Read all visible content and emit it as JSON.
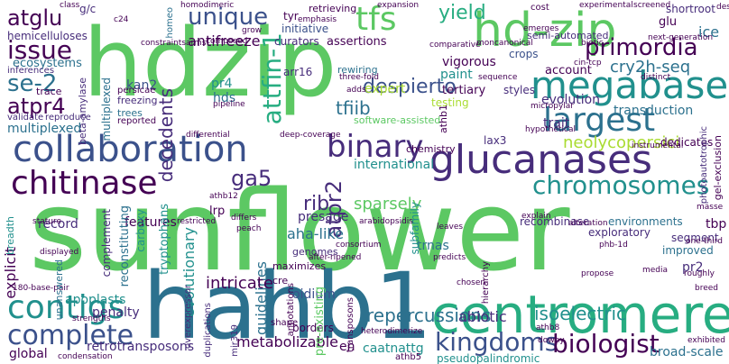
{
  "background": "#ffffff",
  "palette": {
    "darkpurple": "#440154",
    "purple": "#472d7b",
    "indigo": "#3b518b",
    "blue": "#2c718e",
    "teal": "#21908d",
    "sea": "#27ad81",
    "green": "#5cc863",
    "lime": "#aadc32",
    "yellow": "#fde725"
  },
  "words": {
    "sunflower": "sunflower",
    "hdzip": "hdzip",
    "hahb1": "hahb1",
    "centromere": "centromere",
    "hd_zip": "hd-zip",
    "glucanases": "glucanases",
    "collaboration": "collaboration",
    "megabases": "megabases",
    "chitinase": "chitinase",
    "largest": "largest",
    "binary": "binary",
    "contigs": "contigs",
    "complete": "complete",
    "kingdoms": "kingdoms",
    "biologist": "biologist",
    "chromosomes": "chromosomes",
    "primordia": "primordia",
    "tfs": "tfs",
    "unique": "unique",
    "issue": "issue",
    "atglu": "atglu",
    "se_2": "se-2",
    "atpr4": "atpr4",
    "attfin_1": "attfin-1",
    "yield": "yield",
    "despierto": "despierto",
    "tfiib": "tfiib",
    "ga5": "ga5",
    "rib": "rib",
    "atpr2": "atpr2",
    "sparsely": "sparsely",
    "repercussions": "repercussions",
    "isoelectric": "isoelectric",
    "abiotic": "abiotic",
    "cry2h_seq": "cry2h-seq",
    "neolycopersici": "neolycopersici",
    "transduction": "transduction",
    "evolution": "evolution",
    "trait": "trait",
    "account": "account",
    "ice": "ice",
    "glu": "glu",
    "shortroot": "shortroot",
    "hemicelluloses": "hemicelluloses",
    "ecosystems": "ecosystems",
    "antifreeze": "antifreeze",
    "decedents": "decedents",
    "kan2": "kan2",
    "pr4": "pr4",
    "hds": "hds",
    "multiplexed": "multiplexed",
    "international": "international",
    "presage": "presage",
    "aha_like": "aha-like",
    "evolutionary": "evolutionary",
    "intricate": "intricate",
    "oidium": "oidium",
    "metabolizable": "metabolizable",
    "retrotransposons": "retrotransposons",
    "caatnattg": "caatnattg",
    "explicit": "explicit",
    "apoplasts": "apoplasts",
    "penalty": "penalty",
    "features": "features",
    "record": "record",
    "tbp": "tbp",
    "pr2": "pr2",
    "improved": "improved",
    "segment": "segment",
    "exploratory": "exploratory",
    "recombinase": "recombinase",
    "environments": "environments",
    "broad_scale": "broad-scale",
    "global": "global",
    "vigorous": "vigorous",
    "crops": "crops",
    "paint": "paint",
    "expert": "expert",
    "tertiary": "tertiary",
    "styles": "styles",
    "testing": "testing",
    "curators": "curators",
    "assertions": "assertions",
    "initiative": "initiative",
    "tyr": "tyr",
    "retrieving": "retrieving",
    "arr16": "arr16",
    "rewiring": "rewiring",
    "trnas": "trnas",
    "en": "en",
    "guidelines": "guidelines",
    "borders": "borders",
    "genomes": "genomes",
    "tryptophans": "tryptophans",
    "reconstituting": "reconstituting",
    "complement": "complement",
    "carboxy": "carboxy",
    "lrp": "lrp",
    "software_assisted": "software-assisted",
    "lax3": "lax3",
    "dedicates": "dedicates",
    "chemistry": "chemistry",
    "freezing": "freezing",
    "trees": "trees",
    "reported": "reported",
    "persicae": "persicae",
    "beta_amylase": "beta-amylase",
    "trace": "trace",
    "inferences": "inferences",
    "validate": "validate",
    "reproduce": "reproduce",
    "semi_automated": "semi-automated",
    "emerges": "emerges",
    "cost": "cost",
    "class": "class",
    "gc": "g/c",
    "c24": "c24",
    "homeo": "homeo",
    "homodimeric": "homodimeric",
    "emphasis": "emphasis",
    "constraints": "constraints",
    "grow": "grow",
    "composed": "composed",
    "three_fold": "three-fold",
    "sequence": "sequence",
    "comparative": "comparative",
    "moncanonical": "moncanonical",
    "biotic": "biotic",
    "distinct": "distinct",
    "micropylar": "micropylar",
    "hypothetical": "hypothetical",
    "deep_coverage": "deep-coverage",
    "differential": "differential",
    "athb12": "athb12",
    "athb1": "athb1",
    "differs": "differs",
    "restricted": "restricted",
    "peach": "peach",
    "stature": "stature",
    "displayed": "displayed",
    "breadth": "breadth",
    "180_base_pair": "180-base-pair",
    "unanswered": "unanswered",
    "strengths": "strengths",
    "condensation": "condensation",
    "overexpressor": "overexpressor",
    "after_ripened": "after-ripened",
    "subfamily": "subfamily",
    "arabidopsidis": "arabidopsidis",
    "consortium": "consortium",
    "leaves": "leaves",
    "predicts": "predicts",
    "chosen": "chosen",
    "hierarchy": "hierarchy",
    "explain": "explain",
    "phb_1d": "phb-1d",
    "propose": "propose",
    "media": "media",
    "alteration": "alteration",
    "one_third": "one-third",
    "roughly": "roughly",
    "breed": "breed",
    "masse": "masse",
    "gel_exclusion": "gel-exclusion",
    "photoautotrophic": "photoautotrophic",
    "instrumental": "instrumental",
    "next_generation": "next-generation",
    "experimental": "experimental",
    "screened": "screened",
    "desi": "desi",
    "heterodimerize": "heterodimerize",
    "athb8": "athb8",
    "athb5": "athb5",
    "pseudopalindromic": "pseudopalindromic",
    "maximizes": "maximizes",
    "transposons": "transposons",
    "duplications": "duplications",
    "mir319": "mir319",
    "shape": "shape",
    "pre_existing": "pre-existing",
    "cre": "cre",
    "annotations": "annotations",
    "downy": "downy",
    "exhibited": "exhibited",
    "adds": "adds",
    "expansion": "expansion",
    "arms": "arms",
    "pipeline": "pipeline",
    "cinetcpc": "cin-tcp"
  }
}
